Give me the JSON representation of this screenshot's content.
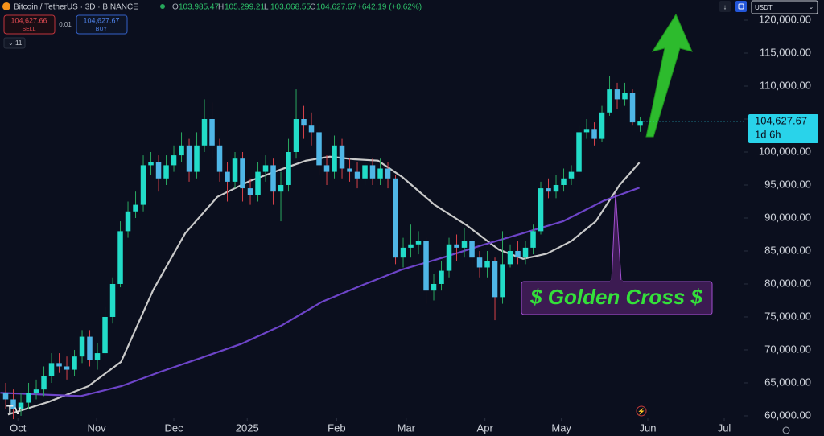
{
  "chart_data": {
    "type": "candlestick",
    "header": {
      "symbol": "Bitcoin / TetherUS · 3D · BINANCE",
      "ohlc": [
        {
          "label": "O",
          "value": "103,985.47"
        },
        {
          "label": "H",
          "value": "105,299.21"
        },
        {
          "label": "L",
          "value": "103,068.55"
        },
        {
          "label": "C",
          "value": "104,627.67"
        }
      ],
      "change": "+642.19 (+0.62%)"
    },
    "trade": {
      "sell_price": "104,627.66",
      "sell": "SELL",
      "spread": "0.01",
      "buy_price": "104,627.67",
      "buy": "BUY",
      "indicators": "11"
    },
    "currency": "USDT",
    "price_tag": {
      "label": "104,627.67",
      "countdown": "1d 6h"
    },
    "annotation": "$ Golden Cross $",
    "up_color": "#22dcc8",
    "down_color": "#4fb6e6",
    "up_wick": "#2aa860",
    "down_wick": "#d8424a",
    "open": [
      63500,
      62500,
      61000,
      62000,
      63500,
      64000,
      66000,
      68000,
      67500,
      67000,
      69000,
      72000,
      68500,
      69500,
      75000,
      80000,
      88000,
      91000,
      92000,
      98000,
      98500,
      96000,
      98000,
      99500,
      101000,
      97000,
      101000,
      105000,
      101000,
      97000,
      95500,
      99000,
      94500,
      93500,
      97000,
      98000,
      94000,
      95000,
      100000,
      105000,
      104000,
      103000,
      98000,
      97000,
      101000,
      97500,
      97000,
      96000,
      98000,
      96000,
      97500,
      96000,
      84000,
      85500,
      86000,
      86500,
      79000,
      80000,
      82000,
      86000,
      85500,
      86500,
      84000,
      82500,
      83500,
      78000,
      83000,
      85000,
      84000,
      85500,
      88000,
      94500,
      94000,
      95000,
      96000,
      97000,
      103000,
      103500,
      102000,
      106000,
      109500,
      108000,
      109000,
      103985.47
    ],
    "high": [
      65000,
      64000,
      63500,
      65000,
      65500,
      67500,
      69500,
      69500,
      69000,
      70000,
      73000,
      73000,
      71000,
      76500,
      81000,
      89500,
      92500,
      94000,
      99500,
      100000,
      99500,
      99500,
      101000,
      103000,
      102000,
      103000,
      108000,
      107500,
      102000,
      98500,
      100000,
      100000,
      96000,
      98500,
      99500,
      99000,
      97000,
      102000,
      109500,
      107000,
      106000,
      104000,
      99500,
      102500,
      102000,
      99000,
      98500,
      99000,
      99000,
      99000,
      98500,
      96500,
      87000,
      89000,
      88000,
      87000,
      81500,
      83500,
      87000,
      87500,
      88500,
      87500,
      85000,
      85000,
      84000,
      88000,
      86000,
      86500,
      86500,
      89000,
      95500,
      96000,
      96500,
      97500,
      98000,
      104000,
      105000,
      104500,
      107000,
      111500,
      110500,
      110500,
      109500,
      105299.21
    ],
    "low": [
      61000,
      59500,
      60000,
      61000,
      62500,
      63000,
      65000,
      66500,
      65500,
      66000,
      68000,
      67500,
      67000,
      69000,
      74000,
      79500,
      87000,
      90000,
      91000,
      96500,
      94000,
      95000,
      97000,
      98500,
      95500,
      96000,
      100000,
      99000,
      95500,
      92500,
      94500,
      92500,
      92000,
      92500,
      95500,
      92000,
      89500,
      94000,
      99000,
      102000,
      101000,
      96500,
      95000,
      96000,
      96000,
      95500,
      94500,
      95000,
      95000,
      95000,
      94500,
      83000,
      82500,
      84000,
      84500,
      77000,
      77500,
      79000,
      81000,
      83500,
      84000,
      82500,
      81000,
      81000,
      74500,
      77000,
      82500,
      83000,
      83000,
      84500,
      87500,
      93000,
      93000,
      94000,
      95000,
      96500,
      102000,
      101000,
      101500,
      105500,
      106500,
      107000,
      104000,
      103068.55
    ],
    "close": [
      62500,
      61000,
      62000,
      63500,
      64000,
      66000,
      68000,
      67500,
      67000,
      69000,
      72000,
      68500,
      69500,
      75000,
      80000,
      88000,
      91000,
      92000,
      98000,
      98500,
      96000,
      98000,
      99500,
      101000,
      97000,
      101000,
      105000,
      101000,
      97000,
      95500,
      99000,
      94500,
      93500,
      97000,
      98000,
      94000,
      95000,
      100000,
      105000,
      104000,
      103000,
      98000,
      97000,
      101000,
      97500,
      97000,
      96000,
      98000,
      96000,
      97500,
      96000,
      84000,
      85500,
      86000,
      86500,
      79000,
      80000,
      82000,
      86000,
      85500,
      86500,
      84000,
      82500,
      83500,
      78000,
      83000,
      85000,
      84000,
      85500,
      88000,
      94500,
      94000,
      95000,
      96000,
      97000,
      103000,
      103500,
      102000,
      106000,
      109500,
      108000,
      109000,
      104500,
      104627.67
    ],
    "series": [
      {
        "color": "#c9c9c9",
        "x": [
          0.3,
          5.6,
          10.8,
          15.1,
          19.3,
          23.5,
          27.7,
          31.9,
          36.1,
          39.3,
          42.4,
          45.6,
          48.7,
          51.9,
          56.1,
          60.3,
          64.5,
          67.7,
          70.8,
          74.0,
          77.2,
          80.3,
          82.9
        ],
        "values": [
          60200,
          62100,
          64500,
          68200,
          79100,
          87700,
          93200,
          95600,
          97400,
          98700,
          99300,
          98900,
          98700,
          96200,
          92000,
          88900,
          85200,
          83800,
          84600,
          86500,
          89500,
          95000,
          98400
        ]
      },
      {
        "color": "#6d44c8",
        "x": [
          -0.7,
          9.8,
          15.1,
          20.3,
          25.6,
          30.8,
          36.1,
          41.4,
          46.6,
          51.9,
          57.2,
          62.4,
          67.7,
          72.9,
          78.2,
          82.9
        ],
        "values": [
          63500,
          63000,
          64500,
          66700,
          68800,
          70900,
          73700,
          77300,
          79800,
          82200,
          84000,
          85900,
          87700,
          89500,
          92600,
          94600
        ]
      }
    ],
    "xlim": [
      -0.74,
      96.63
    ],
    "xticks": [
      {
        "value": 1.6,
        "label": "Oct"
      },
      {
        "value": 11.9,
        "label": "Nov"
      },
      {
        "value": 22.0,
        "label": "Dec"
      },
      {
        "value": 31.6,
        "label": "2025"
      },
      {
        "value": 43.3,
        "label": "Feb"
      },
      {
        "value": 52.4,
        "label": "Mar"
      },
      {
        "value": 62.7,
        "label": "Apr"
      },
      {
        "value": 72.7,
        "label": "May"
      },
      {
        "value": 84.0,
        "label": "Jun"
      },
      {
        "value": 94.0,
        "label": "Jul"
      }
    ],
    "ylim": [
      59630,
      123050
    ],
    "yticks": [
      {
        "value": 60000,
        "label": "60,000.00"
      },
      {
        "value": 65000,
        "label": "65,000.00"
      },
      {
        "value": 70000,
        "label": "70,000.00"
      },
      {
        "value": 75000,
        "label": "75,000.00"
      },
      {
        "value": 80000,
        "label": "80,000.00"
      },
      {
        "value": 85000,
        "label": "85,000.00"
      },
      {
        "value": 90000,
        "label": "90,000.00"
      },
      {
        "value": 95000,
        "label": "95,000.00"
      },
      {
        "value": 100000,
        "label": "100,000.00"
      },
      {
        "value": 105000,
        "label": "105,000.00"
      },
      {
        "value": 110000,
        "label": "110,000.00"
      },
      {
        "value": 115000,
        "label": "115,000.00"
      },
      {
        "value": 120000,
        "label": "120,000.00"
      }
    ]
  }
}
